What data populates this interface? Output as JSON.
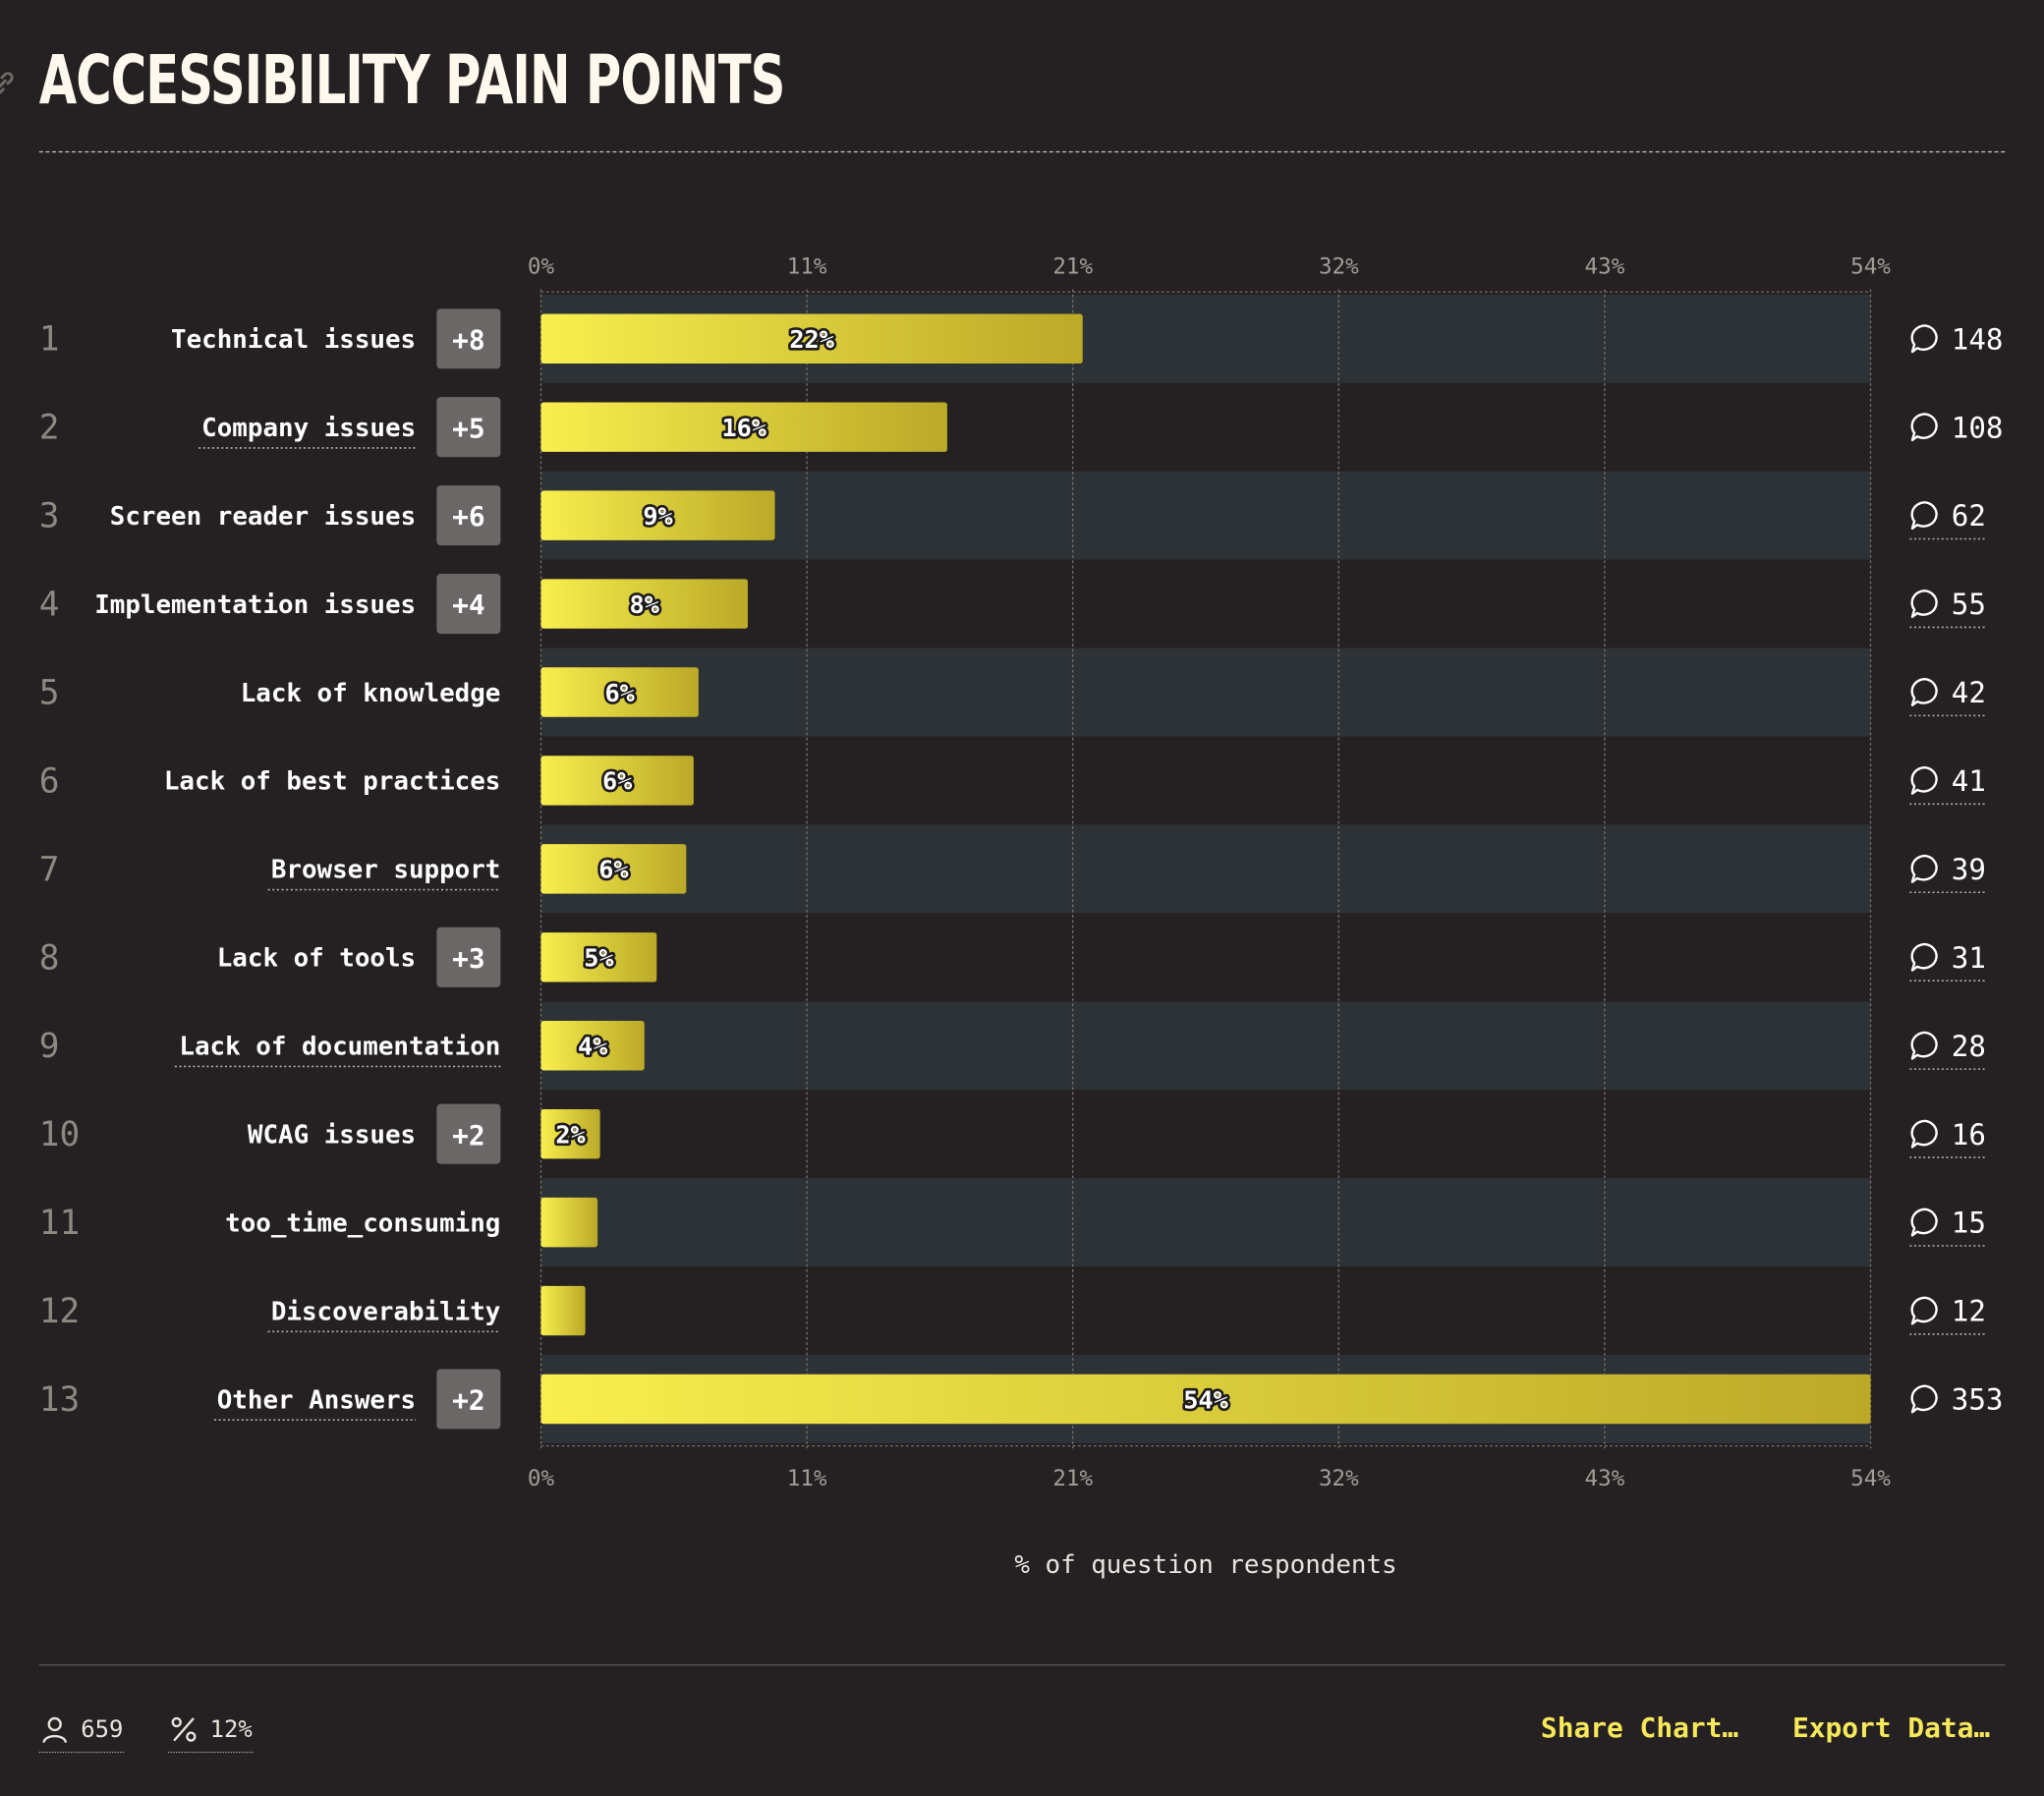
{
  "title": "ACCESSIBILITY PAIN POINTS",
  "chart_data": {
    "type": "bar",
    "orientation": "horizontal",
    "xlabel": "% of question respondents",
    "xlim": [
      0,
      54
    ],
    "tick_labels": [
      "0%",
      "11%",
      "21%",
      "32%",
      "43%",
      "54%"
    ],
    "grid": true,
    "items": [
      {
        "rank": "1",
        "label": "Technical issues",
        "badge": "+8",
        "value": 22,
        "value_label": "22%",
        "count": "148",
        "underlined": false
      },
      {
        "rank": "2",
        "label": "Company issues",
        "badge": "+5",
        "value": 16.5,
        "value_label": "16%",
        "count": "108",
        "underlined": true
      },
      {
        "rank": "3",
        "label": "Screen reader issues",
        "badge": "+6",
        "value": 9.5,
        "value_label": "9%",
        "count": "62",
        "underlined": false
      },
      {
        "rank": "4",
        "label": "Implementation issues",
        "badge": "+4",
        "value": 8.4,
        "value_label": "8%",
        "count": "55",
        "underlined": false
      },
      {
        "rank": "5",
        "label": "Lack of knowledge",
        "badge": "",
        "value": 6.4,
        "value_label": "6%",
        "count": "42",
        "underlined": false
      },
      {
        "rank": "6",
        "label": "Lack of best practices",
        "badge": "",
        "value": 6.2,
        "value_label": "6%",
        "count": "41",
        "underlined": false
      },
      {
        "rank": "7",
        "label": "Browser support",
        "badge": "",
        "value": 5.9,
        "value_label": "6%",
        "count": "39",
        "underlined": true
      },
      {
        "rank": "8",
        "label": "Lack of tools",
        "badge": "+3",
        "value": 4.7,
        "value_label": "5%",
        "count": "31",
        "underlined": false
      },
      {
        "rank": "9",
        "label": "Lack of documentation",
        "badge": "",
        "value": 4.2,
        "value_label": "4%",
        "count": "28",
        "underlined": true
      },
      {
        "rank": "10",
        "label": "WCAG issues",
        "badge": "+2",
        "value": 2.4,
        "value_label": "2%",
        "count": "16",
        "underlined": false
      },
      {
        "rank": "11",
        "label": "too_time_consuming",
        "badge": "",
        "value": 2.3,
        "value_label": "",
        "count": "15",
        "underlined": false
      },
      {
        "rank": "12",
        "label": "Discoverability",
        "badge": "",
        "value": 1.8,
        "value_label": "",
        "count": "12",
        "underlined": true
      },
      {
        "rank": "13",
        "label": "Other Answers",
        "badge": "+2",
        "value": 54,
        "value_label": "54%",
        "count": "353",
        "underlined": true
      }
    ],
    "colors": {
      "bar_start": "#f8ef4e",
      "bar_end": "#bba928",
      "row_alt": "#2c3236",
      "background": "#252122"
    }
  },
  "footer": {
    "respondents": "659",
    "percent": "12%",
    "share_label": "Share Chart…",
    "export_label": "Export Data…"
  }
}
